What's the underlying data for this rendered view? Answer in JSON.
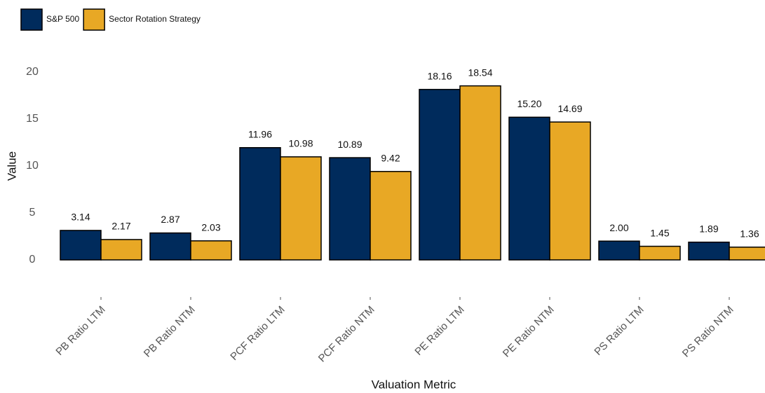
{
  "chart_data": {
    "type": "bar",
    "x_label": "Valuation Metric",
    "y_label": "Value",
    "categories": [
      "PB Ratio LTM",
      "PB Ratio NTM",
      "PCF Ratio LTM",
      "PCF Ratio NTM",
      "PE Ratio LTM",
      "PE Ratio NTM",
      "PS Ratio LTM",
      "PS Ratio NTM"
    ],
    "series": [
      {
        "name": "S&P 500",
        "color": "#002b5c",
        "values": [
          3.14,
          2.87,
          11.96,
          10.89,
          18.16,
          15.2,
          2.0,
          1.89
        ],
        "value_labels": [
          "3.14",
          "2.87",
          "11.96",
          "10.89",
          "18.16",
          "15.20",
          "2.00",
          "1.89"
        ]
      },
      {
        "name": "Sector Rotation Strategy",
        "color": "#e8a825",
        "values": [
          2.17,
          2.03,
          10.98,
          9.42,
          18.54,
          14.69,
          1.45,
          1.36
        ],
        "value_labels": [
          "2.17",
          "2.03",
          "10.98",
          "9.42",
          "18.54",
          "14.69",
          "1.45",
          "1.36"
        ]
      }
    ],
    "ylim": [
      -4,
      21
    ],
    "yticks": [
      0,
      5,
      10,
      15,
      20
    ],
    "grid": false,
    "legend": "top-left"
  }
}
